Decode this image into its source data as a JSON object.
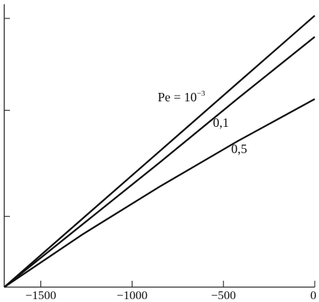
{
  "chart_data": {
    "type": "line",
    "title": "",
    "xlabel": "",
    "ylabel": "",
    "xlim": [
      -1700,
      0
    ],
    "ylim": [
      0,
      1.0
    ],
    "grid": false,
    "x_ticks": [
      -1500,
      -1000,
      -500,
      0
    ],
    "x_tick_labels": [
      "−1500",
      "−1000",
      "−500",
      "0"
    ],
    "y_ticks": [
      0.25,
      0.625,
      0.95
    ],
    "y_tick_labels": [
      "",
      "",
      ""
    ],
    "series": [
      {
        "name": "Pe = 10−3",
        "label_main": "Pe = 10",
        "label_sup": "−3",
        "x": [
          -1700,
          -1275,
          -850,
          -425,
          0
        ],
        "y": [
          0.0,
          0.24,
          0.48,
          0.72,
          0.96
        ]
      },
      {
        "name": "0,1",
        "label_main": "0,1",
        "label_sup": "",
        "x": [
          -1700,
          -1275,
          -850,
          -425,
          0
        ],
        "y": [
          0.0,
          0.22,
          0.44,
          0.665,
          0.885
        ]
      },
      {
        "name": "0,5",
        "label_main": "0,5",
        "label_sup": "",
        "x": [
          -1700,
          -1275,
          -850,
          -425,
          0
        ],
        "y": [
          0.0,
          0.185,
          0.355,
          0.515,
          0.665
        ]
      }
    ]
  }
}
